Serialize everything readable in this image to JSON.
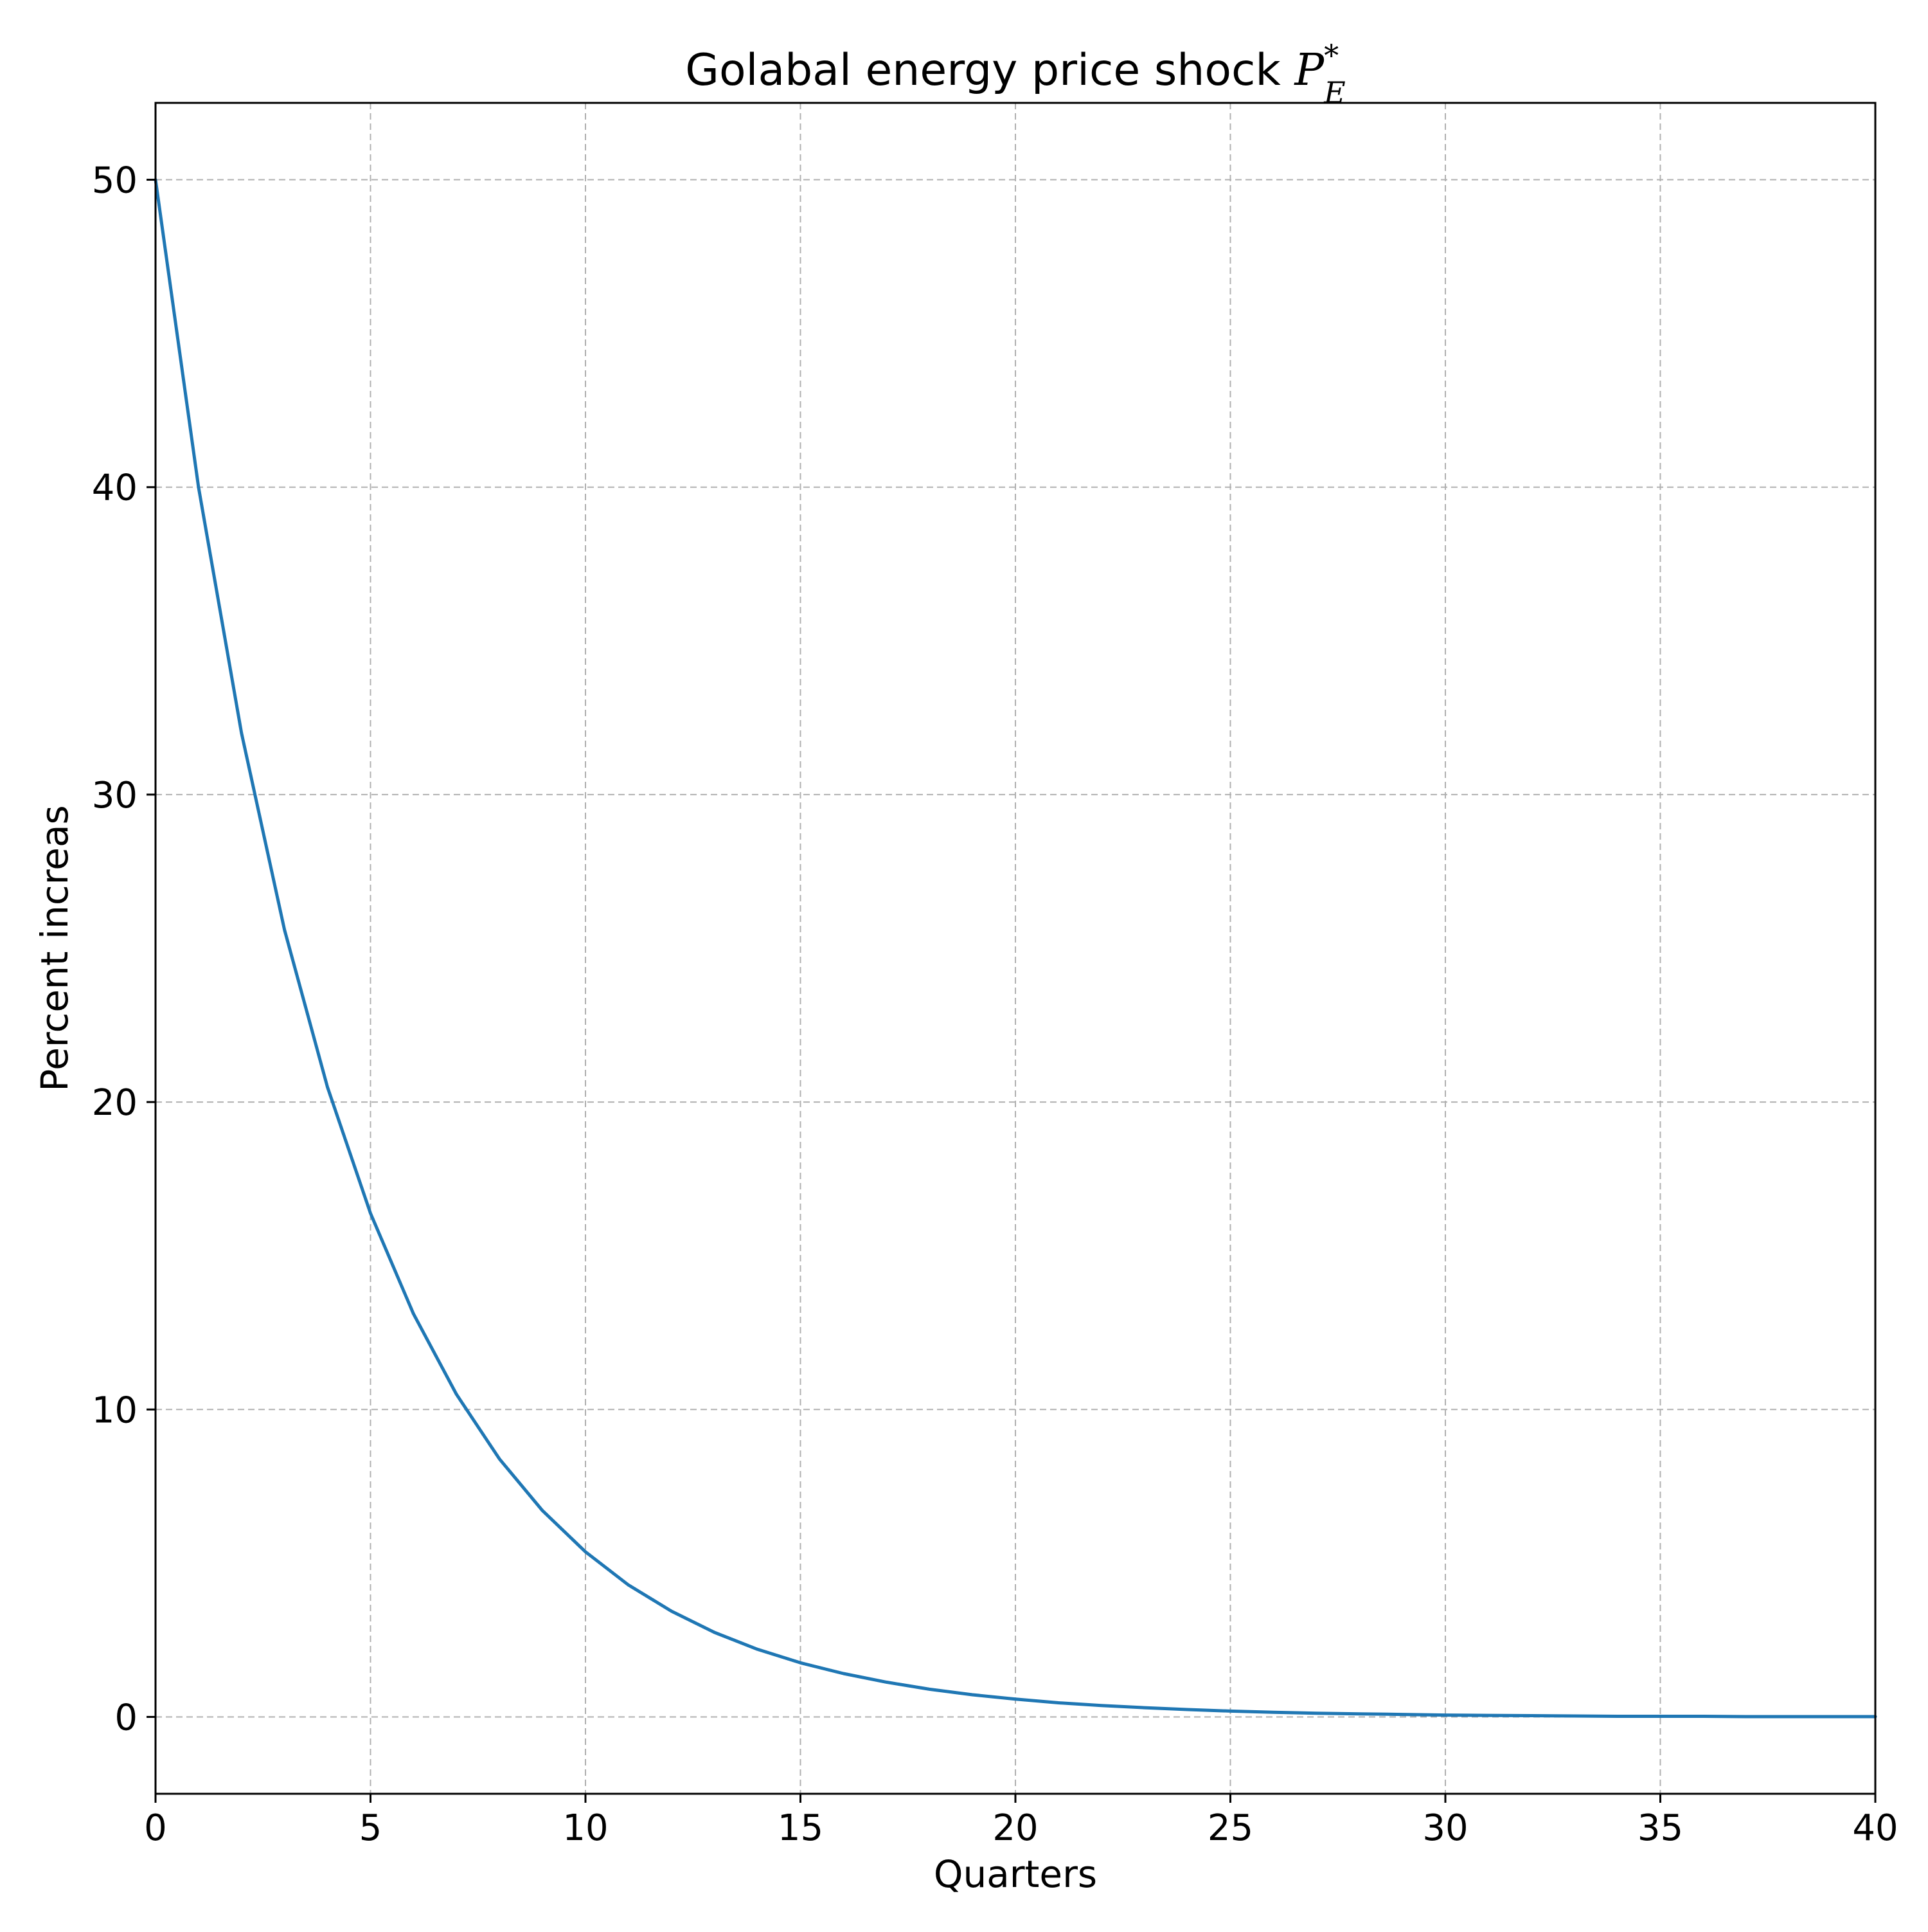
{
  "chart_data": {
    "type": "line",
    "title": "Golabal energy price shock ",
    "title_math": {
      "base": "P",
      "subscript": "E",
      "superscript": "*"
    },
    "xlabel": "Quarters",
    "ylabel": "Percent increas",
    "xlim": [
      0,
      40
    ],
    "ylim": [
      -2.5,
      52.5
    ],
    "x_ticks": [
      0,
      5,
      10,
      15,
      20,
      25,
      30,
      35,
      40
    ],
    "y_ticks": [
      0,
      10,
      20,
      30,
      40,
      50
    ],
    "x_tick_labels": [
      "0",
      "5",
      "10",
      "15",
      "20",
      "25",
      "30",
      "35",
      "40"
    ],
    "y_tick_labels": [
      "0",
      "10",
      "20",
      "30",
      "40",
      "50"
    ],
    "grid": true,
    "grid_style": "dashed",
    "legend": "none",
    "colors": {
      "line": "#1f77b4",
      "grid": "#b0b0b0",
      "axes": "#000000"
    },
    "series": [
      {
        "x": [
          0,
          1,
          2,
          3,
          4,
          5,
          6,
          7,
          8,
          9,
          10,
          11,
          12,
          13,
          14,
          15,
          16,
          17,
          18,
          19,
          20,
          21,
          22,
          23,
          24,
          25,
          26,
          27,
          28,
          29,
          30,
          31,
          32,
          33,
          34,
          35,
          36,
          37,
          38,
          39,
          40
        ],
        "values": [
          50,
          40,
          32,
          25.6,
          20.48,
          16.38,
          13.11,
          10.49,
          8.39,
          6.71,
          5.37,
          4.29,
          3.44,
          2.75,
          2.2,
          1.76,
          1.41,
          1.13,
          0.9,
          0.72,
          0.58,
          0.46,
          0.37,
          0.3,
          0.24,
          0.19,
          0.15,
          0.12,
          0.1,
          0.08,
          0.06,
          0.05,
          0.04,
          0.03,
          0.02,
          0.02,
          0.02,
          0.01,
          0.01,
          0.01,
          0.01
        ]
      }
    ]
  }
}
